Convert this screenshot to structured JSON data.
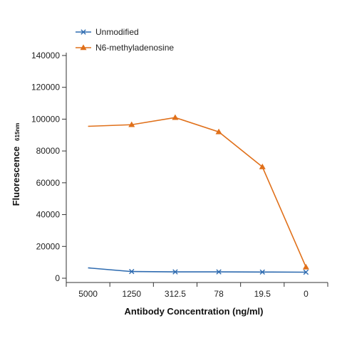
{
  "chart_data": {
    "type": "line",
    "title": "",
    "xlabel": "Antibody Concentration (ng/ml)",
    "ylabel": "Fluorescence",
    "ylabel_subscript": "615nm",
    "categories": [
      "5000",
      "1250",
      "312.5",
      "78",
      "19.5",
      "0"
    ],
    "ylim": [
      0,
      140000
    ],
    "yticks": [
      "0",
      "20000",
      "40000",
      "60000",
      "80000",
      "100000",
      "120000",
      "140000"
    ],
    "grid": false,
    "legend_position": "top-left",
    "series": [
      {
        "name": "Unmodified",
        "color": "#2e6bb0",
        "marker": "x",
        "values": [
          6500,
          4200,
          4000,
          4000,
          3900,
          3800
        ]
      },
      {
        "name": "N6-methyladenosine",
        "color": "#e0701a",
        "marker": "triangle",
        "values": [
          95500,
          96500,
          101000,
          92000,
          70000,
          7000
        ]
      }
    ]
  }
}
